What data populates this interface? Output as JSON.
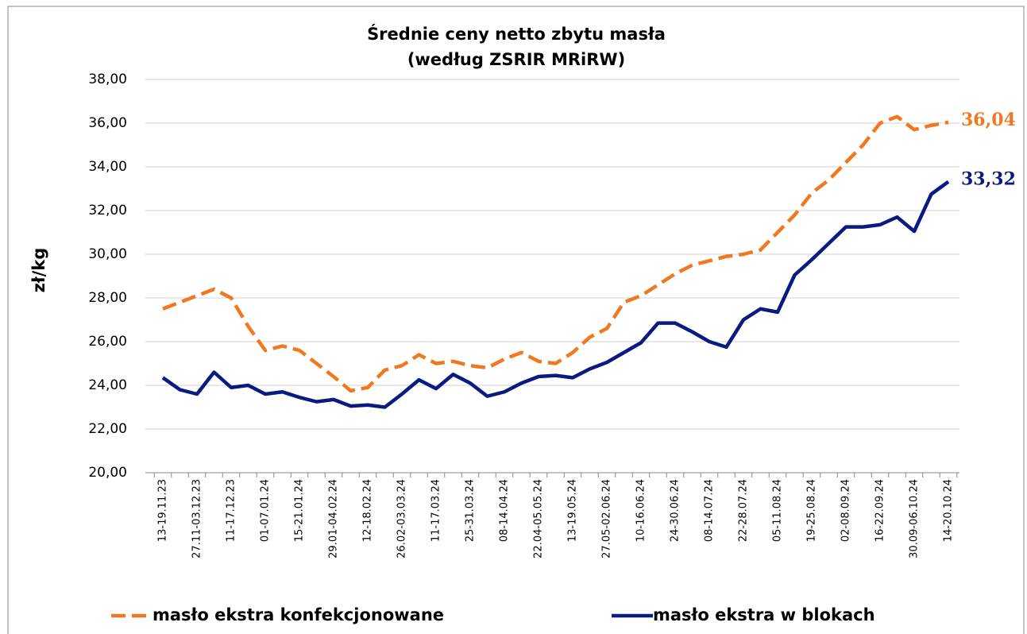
{
  "chart_data": {
    "type": "line",
    "title": [
      "Średnie ceny netto zbytu masła",
      "(według ZSRIR MRiRW)"
    ],
    "y_label": "zł/kg",
    "categories": [
      "13-19.11.23",
      null,
      "27.11-03.12.23",
      null,
      "11-17.12.23",
      null,
      "01-07.01.24",
      null,
      "15-21.01.24",
      null,
      "29.01-04.02.24",
      null,
      "12-18.02.24",
      null,
      "26.02-03.03.24",
      null,
      "11-17.03.24",
      null,
      "25-31.03.24",
      null,
      "08-14.04.24",
      null,
      "22.04-05.05.24",
      null,
      "13-19.05.24",
      null,
      "27.05-02.06.24",
      null,
      "10-16.06.24",
      null,
      "24-30.06.24",
      null,
      "08-14.07.24",
      null,
      "22-28.07.24",
      null,
      "05-11.08.24",
      null,
      "19-25.08.24",
      null,
      "02-08.09.24",
      null,
      "16-22.09.24",
      null,
      "30.09-06.10.24",
      null,
      "14-20.10.24"
    ],
    "series": [
      {
        "name": "masło ekstra konfekcjonowane",
        "color": "#f07820",
        "dash": true,
        "values": [
          27.5,
          27.8,
          28.1,
          28.4,
          28.0,
          26.7,
          25.6,
          25.8,
          25.6,
          25.0,
          24.4,
          23.75,
          23.9,
          24.7,
          24.9,
          25.4,
          25.0,
          25.1,
          24.9,
          24.8,
          25.2,
          25.5,
          25.1,
          25.0,
          25.5,
          26.2,
          26.6,
          27.8,
          28.1,
          28.6,
          29.1,
          29.5,
          29.7,
          29.9,
          30.0,
          30.2,
          31.0,
          31.8,
          32.8,
          33.4,
          34.2,
          35.0,
          36.0,
          36.3,
          35.7,
          35.9,
          36.04
        ],
        "value_labels": [
          null,
          null,
          null,
          null,
          null,
          null,
          null,
          null,
          null,
          null,
          null,
          null,
          null,
          null,
          null,
          null,
          null,
          null,
          null,
          null,
          null,
          null,
          null,
          null,
          null,
          null,
          null,
          null,
          null,
          null,
          null,
          null,
          null,
          null,
          null,
          null,
          null,
          null,
          null,
          null,
          null,
          null,
          null,
          null,
          null,
          null,
          "36,04"
        ]
      },
      {
        "name": "masło ekstra w blokach",
        "color": "#0a1a80",
        "dash": false,
        "values": [
          24.35,
          23.8,
          23.6,
          24.6,
          23.9,
          24.0,
          23.6,
          23.7,
          23.45,
          23.25,
          23.35,
          23.05,
          23.1,
          23.0,
          23.6,
          24.25,
          23.85,
          24.5,
          24.1,
          23.5,
          23.7,
          24.1,
          24.4,
          24.45,
          24.35,
          24.75,
          25.05,
          25.5,
          25.95,
          26.85,
          26.85,
          26.45,
          26.0,
          25.75,
          27.0,
          27.5,
          27.35,
          29.05,
          29.75,
          30.5,
          31.25,
          31.25,
          31.35,
          31.7,
          31.05,
          32.75,
          33.32
        ],
        "value_labels": [
          null,
          null,
          null,
          null,
          null,
          null,
          null,
          null,
          null,
          null,
          null,
          null,
          null,
          null,
          null,
          null,
          null,
          null,
          null,
          null,
          null,
          null,
          null,
          null,
          null,
          null,
          null,
          null,
          null,
          null,
          null,
          null,
          null,
          null,
          null,
          null,
          null,
          null,
          null,
          null,
          null,
          null,
          null,
          null,
          null,
          null,
          "33,32"
        ]
      }
    ],
    "ylim": [
      20,
      38
    ],
    "yticks": [
      {
        "value": 20,
        "label": "20,00"
      },
      {
        "value": 22,
        "label": "22,00"
      },
      {
        "value": 24,
        "label": "24,00"
      },
      {
        "value": 26,
        "label": "26,00"
      },
      {
        "value": 28,
        "label": "28,00"
      },
      {
        "value": 30,
        "label": "30,00"
      },
      {
        "value": 32,
        "label": "32,00"
      },
      {
        "value": 34,
        "label": "34,00"
      },
      {
        "value": 36,
        "label": "36,00"
      },
      {
        "value": 38,
        "label": "38,00"
      }
    ],
    "grid": true
  }
}
